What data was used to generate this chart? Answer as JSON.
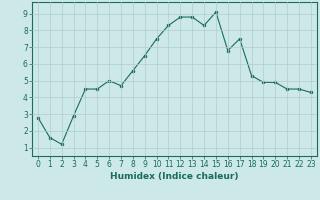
{
  "x": [
    0,
    1,
    2,
    3,
    4,
    5,
    6,
    7,
    8,
    9,
    10,
    11,
    12,
    13,
    14,
    15,
    16,
    17,
    18,
    19,
    20,
    21,
    22,
    23
  ],
  "y": [
    2.8,
    1.6,
    1.2,
    2.9,
    4.5,
    4.5,
    5.0,
    4.7,
    5.6,
    6.5,
    7.5,
    8.3,
    8.8,
    8.8,
    8.3,
    9.1,
    6.8,
    7.5,
    5.3,
    4.9,
    4.9,
    4.5,
    4.5,
    4.3
  ],
  "line_color": "#1a6b5a",
  "marker_color": "#1a6b5a",
  "bg_color": "#cce8e8",
  "grid_color": "#b0cccc",
  "xlabel": "Humidex (Indice chaleur)",
  "xlim": [
    -0.5,
    23.5
  ],
  "ylim": [
    0.5,
    9.7
  ],
  "yticks": [
    1,
    2,
    3,
    4,
    5,
    6,
    7,
    8,
    9
  ],
  "xticks": [
    0,
    1,
    2,
    3,
    4,
    5,
    6,
    7,
    8,
    9,
    10,
    11,
    12,
    13,
    14,
    15,
    16,
    17,
    18,
    19,
    20,
    21,
    22,
    23
  ],
  "tick_fontsize": 5.5,
  "label_fontsize": 6.5
}
